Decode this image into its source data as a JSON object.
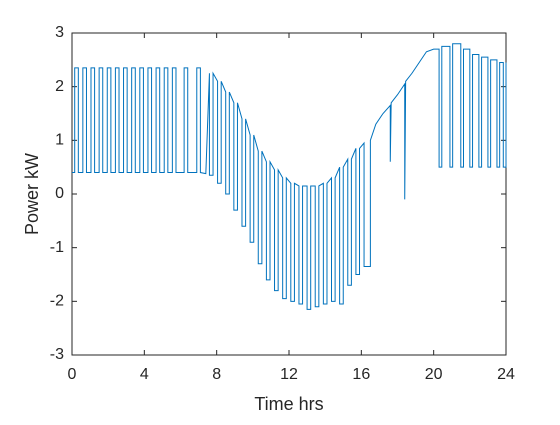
{
  "chart_data": {
    "type": "line",
    "xlabel": "Time hrs",
    "ylabel": "Power kW",
    "xlim": [
      0,
      24
    ],
    "xticks": [
      0,
      4,
      8,
      12,
      16,
      20,
      24
    ],
    "ylim": [
      -3,
      3
    ],
    "yticks": [
      -3,
      -2,
      -1,
      0,
      1,
      2,
      3
    ],
    "grid": false,
    "series": [
      {
        "color": "#0072bd",
        "x": [
          0,
          0.15,
          0.15,
          0.35,
          0.35,
          0.6,
          0.6,
          0.8,
          0.8,
          1.05,
          1.05,
          1.25,
          1.25,
          1.5,
          1.5,
          1.7,
          1.7,
          1.95,
          1.95,
          2.15,
          2.15,
          2.4,
          2.4,
          2.6,
          2.6,
          2.85,
          2.85,
          3.05,
          3.05,
          3.3,
          3.3,
          3.5,
          3.5,
          3.75,
          3.75,
          3.95,
          3.95,
          4.2,
          4.2,
          4.4,
          4.4,
          4.65,
          4.65,
          4.85,
          4.85,
          5.1,
          5.1,
          5.3,
          5.3,
          5.55,
          5.55,
          5.75,
          5.75,
          6.2,
          6.2,
          6.4,
          6.4,
          6.9,
          6.9,
          7.1,
          7.1,
          7.4,
          7.6,
          7.6,
          7.8,
          7.8,
          8.05,
          8.05,
          8.25,
          8.25,
          8.5,
          8.5,
          8.7,
          8.7,
          8.95,
          8.95,
          9.15,
          9.15,
          9.4,
          9.4,
          9.6,
          9.6,
          9.85,
          9.85,
          10.05,
          10.05,
          10.3,
          10.3,
          10.5,
          10.5,
          10.75,
          10.75,
          10.95,
          10.95,
          11.2,
          11.2,
          11.4,
          11.4,
          11.65,
          11.65,
          11.85,
          11.85,
          12.1,
          12.1,
          12.3,
          12.3,
          12.55,
          12.55,
          12.75,
          12.75,
          13.0,
          13.0,
          13.2,
          13.2,
          13.45,
          13.45,
          13.65,
          13.65,
          13.9,
          13.9,
          14.1,
          14.1,
          14.35,
          14.35,
          14.55,
          14.55,
          14.8,
          14.8,
          15.0,
          15.0,
          15.25,
          15.25,
          15.45,
          15.45,
          15.7,
          15.7,
          15.9,
          15.9,
          16.15,
          16.15,
          16.5,
          16.5,
          16.8,
          17.2,
          17.6,
          17.6,
          17.65,
          18.0,
          18.4,
          18.4,
          18.45,
          18.8,
          19.2,
          19.6,
          20.0,
          20.3,
          20.3,
          20.45,
          20.45,
          20.9,
          20.9,
          21.05,
          21.05,
          21.5,
          21.5,
          21.65,
          21.65,
          22.0,
          22.0,
          22.15,
          22.15,
          22.5,
          22.5,
          22.65,
          22.65,
          23.0,
          23.0,
          23.15,
          23.15,
          23.5,
          23.5,
          23.65,
          23.65,
          23.85,
          23.85,
          24.0,
          24.0
        ],
        "values": [
          0.4,
          0.4,
          2.35,
          2.35,
          0.4,
          0.4,
          2.35,
          2.35,
          0.4,
          0.4,
          2.35,
          2.35,
          0.4,
          0.4,
          2.35,
          2.35,
          0.4,
          0.4,
          2.35,
          2.35,
          0.4,
          0.4,
          2.35,
          2.35,
          0.4,
          0.4,
          2.35,
          2.35,
          0.4,
          0.4,
          2.35,
          2.35,
          0.4,
          0.4,
          2.35,
          2.35,
          0.4,
          0.4,
          2.35,
          2.35,
          0.4,
          0.4,
          2.35,
          2.35,
          0.4,
          0.4,
          2.35,
          2.35,
          0.4,
          0.4,
          2.35,
          2.35,
          0.4,
          0.4,
          2.35,
          2.35,
          0.4,
          0.4,
          2.35,
          2.35,
          0.4,
          0.38,
          2.25,
          0.35,
          0.35,
          2.25,
          2.1,
          0.2,
          0.2,
          2.1,
          1.9,
          0.0,
          0.0,
          1.9,
          1.7,
          -0.3,
          -0.3,
          1.7,
          1.4,
          -0.6,
          -0.6,
          1.4,
          1.1,
          -0.9,
          -0.9,
          1.1,
          0.8,
          -1.3,
          -1.3,
          0.8,
          0.6,
          -1.6,
          -1.6,
          0.6,
          0.45,
          -1.8,
          -1.8,
          0.45,
          0.3,
          -1.95,
          -1.95,
          0.3,
          0.2,
          -2.0,
          -2.0,
          0.2,
          0.15,
          -2.05,
          -2.05,
          0.15,
          0.15,
          -2.15,
          -2.15,
          0.15,
          0.15,
          -2.1,
          -2.1,
          0.15,
          0.2,
          -2.05,
          -2.05,
          0.2,
          0.3,
          -2.0,
          -2.0,
          0.3,
          0.5,
          -2.05,
          -2.05,
          0.5,
          0.65,
          -1.7,
          -1.7,
          0.65,
          0.85,
          -1.5,
          -1.5,
          0.85,
          0.95,
          -1.35,
          -1.35,
          1.0,
          1.3,
          1.5,
          1.65,
          0.6,
          1.7,
          1.85,
          2.05,
          -0.1,
          2.1,
          2.25,
          2.45,
          2.65,
          2.7,
          2.7,
          0.5,
          0.5,
          2.75,
          2.75,
          0.5,
          0.5,
          2.8,
          2.8,
          0.5,
          0.5,
          2.7,
          2.7,
          0.5,
          0.5,
          2.6,
          2.6,
          0.5,
          0.5,
          2.55,
          2.55,
          0.5,
          0.5,
          2.5,
          2.5,
          0.5,
          0.5,
          2.45,
          2.45,
          0.5,
          0.5,
          2.45
        ]
      }
    ]
  }
}
